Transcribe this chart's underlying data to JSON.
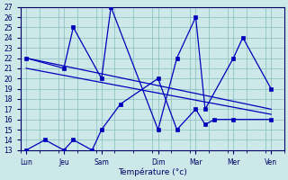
{
  "xlabel": "Température (°c)",
  "bg_color": "#cce8e8",
  "grid_color": "#88bbbb",
  "line_color": "#0000bb",
  "ylim": [
    13,
    27
  ],
  "ytick_vals": [
    13,
    14,
    15,
    16,
    17,
    18,
    19,
    20,
    21,
    22,
    23,
    24,
    25,
    26,
    27
  ],
  "xlim": [
    0,
    14
  ],
  "day_labels": [
    "Lun",
    "Jeu",
    "Sam",
    "Dim",
    "Mar",
    "Mer",
    "Ven"
  ],
  "day_tick_xpos": [
    0.3,
    2.3,
    4.3,
    7.3,
    9.3,
    11.3,
    13.3
  ],
  "series1_x": [
    0.3,
    2.3,
    2.8,
    4.3,
    4.8,
    7.3,
    8.3,
    9.3,
    9.8,
    11.3,
    11.8,
    13.3
  ],
  "series1_y": [
    22,
    21,
    25,
    20,
    27,
    15,
    22,
    26,
    17,
    22,
    24,
    19
  ],
  "series2_x": [
    0.3,
    1.3,
    2.3,
    2.8,
    3.8,
    4.3,
    5.3,
    7.3,
    8.3,
    9.3,
    9.8,
    10.3,
    11.3,
    13.3
  ],
  "series2_y": [
    13,
    14,
    13,
    14,
    13,
    15,
    17.5,
    20,
    15,
    17,
    15.5,
    16,
    16,
    16
  ],
  "trend1_x": [
    0.3,
    13.3
  ],
  "trend1_y": [
    22.0,
    17.0
  ],
  "trend2_x": [
    0.3,
    13.3
  ],
  "trend2_y": [
    21.0,
    16.5
  ]
}
